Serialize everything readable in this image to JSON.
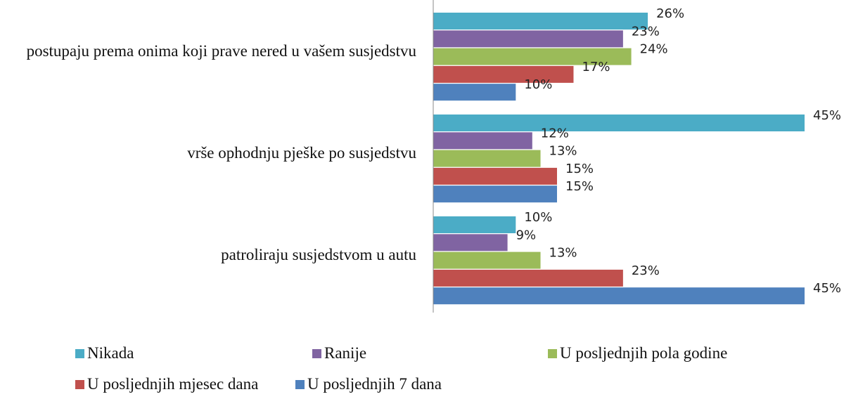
{
  "chart_data": {
    "type": "bar",
    "orientation": "horizontal",
    "categories": [
      "postupaju prema onima koji prave nered u vašem susjedstvu",
      "vrše ophodnju pješke po susjedstvu",
      "patroliraju susjedstvom u autu"
    ],
    "series": [
      {
        "name": "Nikada",
        "color": "#4bacc6",
        "values": [
          26,
          45,
          10
        ],
        "value_labels": [
          "26%",
          "45%",
          "10%"
        ]
      },
      {
        "name": "Ranije",
        "color": "#8064a2",
        "values": [
          23,
          12,
          9
        ],
        "value_labels": [
          "23%",
          "12%",
          "9%"
        ]
      },
      {
        "name": "U posljednjih pola godine",
        "color": "#9bbb59",
        "values": [
          24,
          13,
          13
        ],
        "value_labels": [
          "24%",
          "13%",
          "13%"
        ]
      },
      {
        "name": "U posljednjih mjesec dana",
        "color": "#c0504d",
        "values": [
          17,
          15,
          23
        ],
        "value_labels": [
          "17%",
          "15%",
          "23%"
        ]
      },
      {
        "name": "U posljednjih 7 dana",
        "color": "#4f81bd",
        "values": [
          10,
          15,
          45
        ],
        "value_labels": [
          "10%",
          "15%",
          "45%"
        ]
      }
    ],
    "legend": "bottom"
  }
}
